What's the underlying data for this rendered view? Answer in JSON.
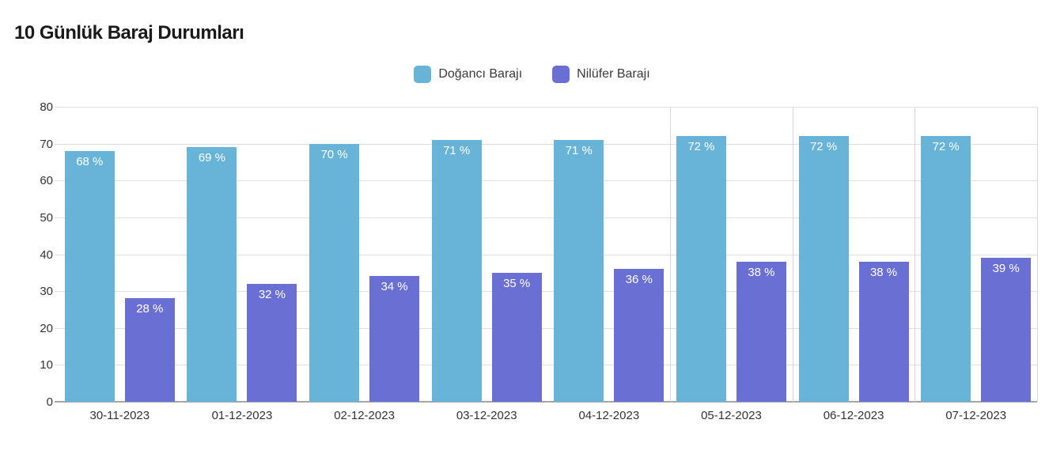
{
  "title": "10 Günlük Baraj Durumları",
  "chart_data": {
    "type": "bar",
    "title": "10 Günlük Baraj Durumları",
    "categories": [
      "30-11-2023",
      "01-12-2023",
      "02-12-2023",
      "03-12-2023",
      "04-12-2023",
      "05-12-2023",
      "06-12-2023",
      "07-12-2023"
    ],
    "series": [
      {
        "name": "Doğancı Barajı",
        "color": "#68b4d8",
        "values": [
          68,
          69,
          70,
          71,
          71,
          72,
          72,
          72
        ],
        "labels": [
          "68 %",
          "69 %",
          "70 %",
          "71 %",
          "71 %",
          "72 %",
          "72 %",
          "72 %"
        ]
      },
      {
        "name": "Nilüfer Barajı",
        "color": "#6a6fd4",
        "values": [
          28,
          32,
          34,
          35,
          36,
          38,
          38,
          39
        ],
        "labels": [
          "28 %",
          "32 %",
          "34 %",
          "35 %",
          "36 %",
          "38 %",
          "38 %",
          "39 %"
        ]
      }
    ],
    "unit": "%",
    "ylim": [
      0,
      80
    ],
    "yticks": [
      0,
      10,
      20,
      30,
      40,
      50,
      60,
      70,
      80
    ],
    "grid": "horizontal",
    "legend_position": "top",
    "value_label_color": "#ffffff",
    "vline_boundaries": [
      5,
      6,
      7,
      8
    ]
  },
  "colors": {
    "title_text": "#1a1a1a",
    "axis_text": "#333333",
    "legend_text": "#3a3a3a",
    "gridline": "#e0e0e0",
    "baseline": "#a6a6a6",
    "vertical_separator": "#d6d6d6",
    "background": "#ffffff",
    "doganci_bar": "#68b4d8",
    "nilufer_bar": "#6a6fd4"
  }
}
